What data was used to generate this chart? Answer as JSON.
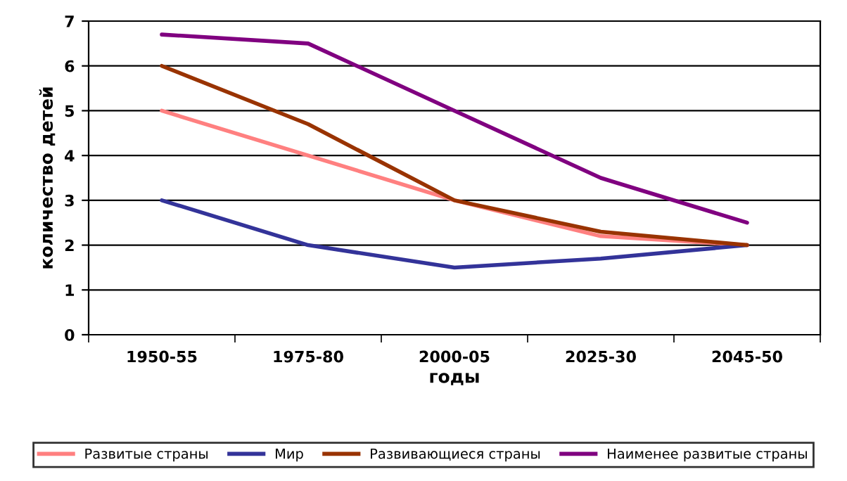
{
  "chart_data": {
    "type": "line",
    "xlabel": "годы",
    "ylabel": "количество детей",
    "categories": [
      "1950-55",
      "1975-80",
      "2000-05",
      "2025-30",
      "2045-50"
    ],
    "series": [
      {
        "name": "Развитые страны",
        "color": "#ff8080",
        "values": [
          5,
          4,
          3,
          2.2,
          2
        ]
      },
      {
        "name": "Мир",
        "color": "#333399",
        "values": [
          3,
          2,
          1.5,
          1.7,
          2
        ]
      },
      {
        "name": "Развивающиеся страны",
        "color": "#993300",
        "values": [
          6,
          4.7,
          3,
          2.3,
          2
        ]
      },
      {
        "name": "Наименее развитые страны",
        "color": "#800080",
        "values": [
          6.7,
          6.5,
          5,
          3.5,
          2.5
        ]
      }
    ],
    "ylim": [
      0,
      7
    ],
    "yticks": [
      0,
      1,
      2,
      3,
      4,
      5,
      6,
      7
    ],
    "grid": "y",
    "legend": "bottom",
    "marker": "none",
    "line_style": "solid"
  }
}
